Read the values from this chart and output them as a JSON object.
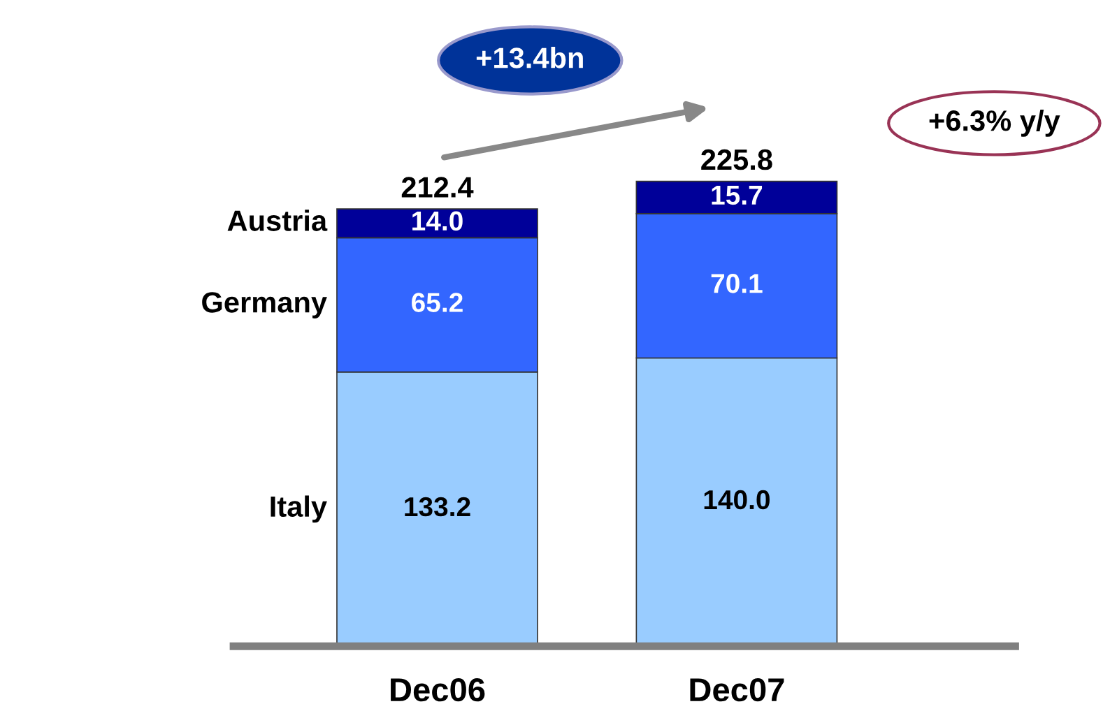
{
  "chart_data": {
    "type": "bar",
    "stacked": true,
    "categories": [
      "Dec06",
      "Dec07"
    ],
    "series": [
      {
        "name": "Italy",
        "color": "#99ccff",
        "values": [
          133.2,
          140.0
        ],
        "value_labels": [
          "133.2",
          "140.0"
        ]
      },
      {
        "name": "Germany",
        "color": "#3366ff",
        "values": [
          65.2,
          70.1
        ],
        "value_labels": [
          "65.2",
          "70.1"
        ]
      },
      {
        "name": "Austria",
        "color": "#000099",
        "values": [
          14.0,
          15.7
        ],
        "value_labels": [
          "14.0",
          "15.7"
        ]
      }
    ],
    "totals": [
      "212.4",
      "225.8"
    ],
    "annotations": [
      "+13.4bn",
      "+6.3% y/y"
    ],
    "tick_labels": "x",
    "grid": false,
    "legend": false
  }
}
